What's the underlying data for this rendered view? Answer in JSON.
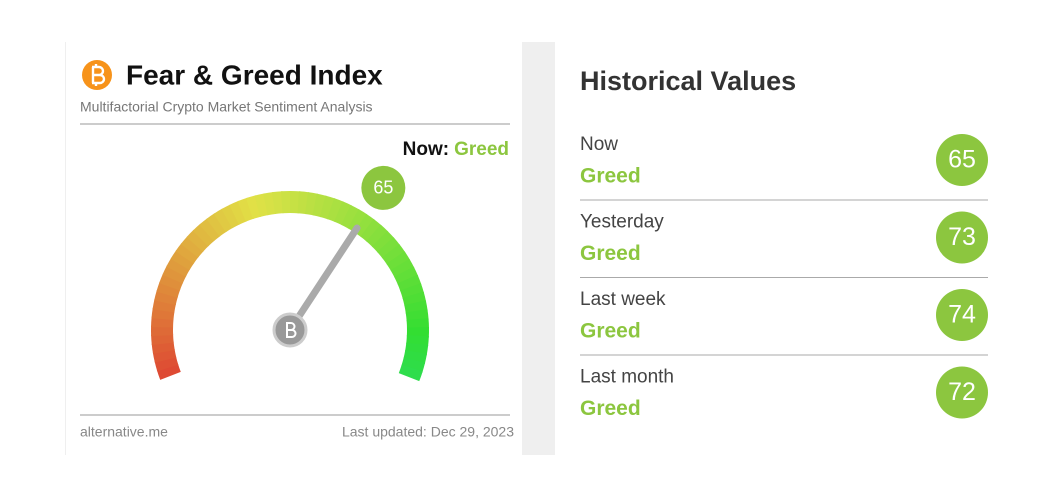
{
  "header": {
    "title": "Fear & Greed Index",
    "subtitle": "Multifactorial Crypto Market Sentiment Analysis"
  },
  "now": {
    "label": "Now:",
    "classification": "Greed",
    "value": 65
  },
  "footer": {
    "source": "alternative.me",
    "updated": "Last updated: Dec 29, 2023"
  },
  "historical": {
    "title": "Historical Values",
    "rows": [
      {
        "period": "Now",
        "classification": "Greed",
        "value": 65
      },
      {
        "period": "Yesterday",
        "classification": "Greed",
        "value": 73
      },
      {
        "period": "Last week",
        "classification": "Greed",
        "value": 74
      },
      {
        "period": "Last month",
        "classification": "Greed",
        "value": 72
      }
    ]
  }
}
